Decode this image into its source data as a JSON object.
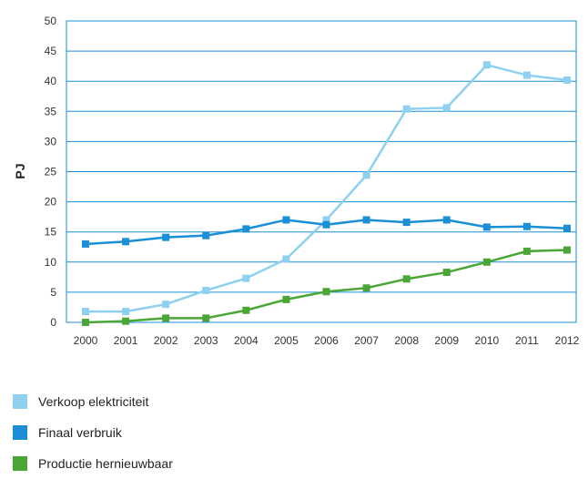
{
  "chart_data": {
    "type": "line",
    "title": "",
    "xlabel": "",
    "ylabel": "PJ",
    "ylim": [
      0,
      50
    ],
    "yticks": [
      0,
      5,
      10,
      15,
      20,
      25,
      30,
      35,
      40,
      45,
      50
    ],
    "grid": true,
    "legend_position": "bottom-left",
    "categories": [
      "2000",
      "2001",
      "2002",
      "2003",
      "2004",
      "2005",
      "2006",
      "2007",
      "2008",
      "2009",
      "2010",
      "2011",
      "2012"
    ],
    "series": [
      {
        "name": "Verkoop elektriciteit",
        "color": "#8ed0f0",
        "values": [
          1.8,
          1.8,
          3.0,
          5.3,
          7.3,
          10.5,
          17.0,
          24.4,
          35.4,
          35.6,
          42.7,
          41.0,
          40.2
        ]
      },
      {
        "name": "Finaal verbruik",
        "color": "#1a8fd6",
        "values": [
          13.0,
          13.4,
          14.1,
          14.4,
          15.5,
          17.0,
          16.2,
          17.0,
          16.6,
          17.0,
          15.8,
          15.9,
          15.6
        ]
      },
      {
        "name": "Productie hernieuwbaar",
        "color": "#4aa736",
        "values": [
          0.0,
          0.2,
          0.7,
          0.7,
          2.0,
          3.8,
          5.1,
          5.7,
          7.2,
          8.3,
          10.0,
          11.8,
          12.0
        ]
      }
    ]
  }
}
